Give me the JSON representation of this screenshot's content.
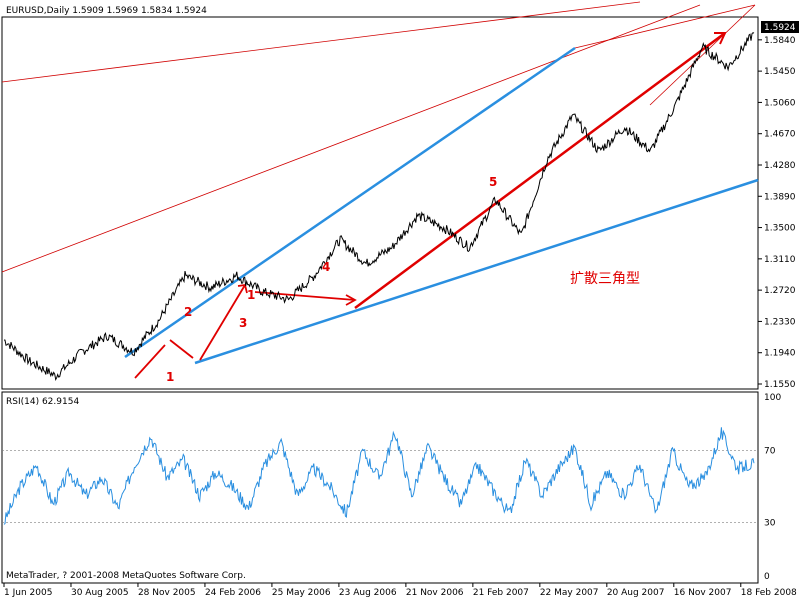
{
  "chart_data": [
    {
      "type": "line",
      "header": "EURUSD,Daily  1.5909 1.5969 1.5834 1.5924",
      "price_badge": "1.5924",
      "series": [
        {
          "values": [
            1.21,
            1.183,
            1.165,
            1.195,
            1.215,
            1.195,
            1.235,
            1.29,
            1.275,
            1.29,
            1.27,
            1.26,
            1.29,
            1.335,
            1.305,
            1.325,
            1.365,
            1.35,
            1.325,
            1.385,
            1.34,
            1.435,
            1.49,
            1.445,
            1.475,
            1.445,
            1.505,
            1.575,
            1.55,
            1.5924
          ]
        }
      ],
      "y_ticks": [
        "1.5840",
        "1.5450",
        "1.5060",
        "1.4670",
        "1.4280",
        "1.3890",
        "1.3500",
        "1.3110",
        "1.2720",
        "1.2330",
        "1.1940",
        "1.1550"
      ],
      "ylim": [
        1.155,
        1.6
      ],
      "x_ticks": [
        "1 Jun 2005",
        "30 Aug 2005",
        "28 Nov 2005",
        "24 Feb 2006",
        "25 May 2006",
        "23 Aug 2006",
        "21 Nov 2006",
        "21 Feb 2007",
        "22 May 2007",
        "20 Aug 2007",
        "16 Nov 2007",
        "18 Feb 2008"
      ],
      "wave_labels": [
        "1",
        "2",
        "3",
        "1",
        "4",
        "5"
      ],
      "pattern_label": "扩散三角型",
      "colors": {
        "price": "#000000",
        "support": "#2a8fe0",
        "channel": "#d00000"
      }
    },
    {
      "type": "line",
      "header": "RSI(14) 62.9154",
      "ylim": [
        0,
        100
      ],
      "y_ticks": [
        "100",
        "70",
        "30",
        "0"
      ],
      "series": [
        {
          "values": [
            30,
            50,
            62,
            40,
            58,
            45,
            55,
            38,
            62,
            78,
            55,
            65,
            45,
            58,
            50,
            38,
            62,
            75,
            45,
            60,
            50,
            35,
            70,
            55,
            80,
            45,
            72,
            55,
            40,
            62,
            48,
            35,
            65,
            45,
            60,
            72,
            40,
            58,
            45,
            62,
            35,
            70,
            50,
            55,
            80,
            60,
            63
          ]
        }
      ],
      "copyright": "MetaTrader, ? 2001-2008 MetaQuotes Software Corp.",
      "colors": {
        "line": "#2a8fe0",
        "level": "#808080"
      }
    }
  ]
}
